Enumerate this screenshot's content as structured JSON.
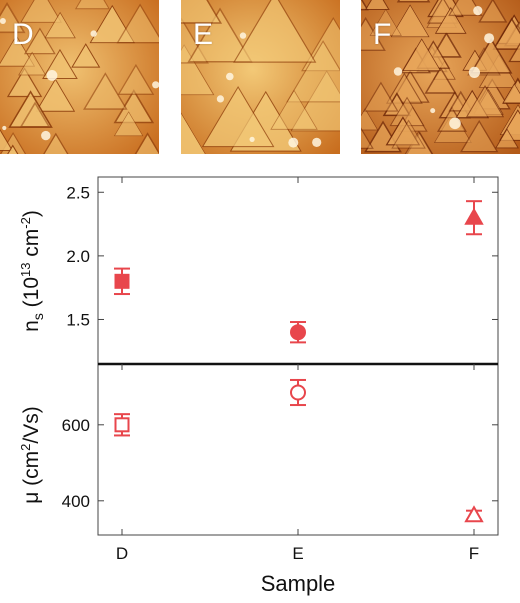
{
  "panels": [
    {
      "label": "D",
      "base": "#c76a1c",
      "light": "#f0c171",
      "dark": "#8a3a0a",
      "triangles": 24
    },
    {
      "label": "E",
      "base": "#c86e1f",
      "light": "#f3c977",
      "dark": "#8e3e0c",
      "triangles": 12
    },
    {
      "label": "F",
      "base": "#b35a18",
      "light": "#e8a65a",
      "dark": "#6b2406",
      "triangles": 55
    }
  ],
  "chart_data": [
    {
      "type": "scatter",
      "categories": [
        "D",
        "E",
        "F"
      ],
      "ylabel": "n_s (10^13 cm^-2)",
      "ylabel_parts": {
        "main": "n",
        "sub": "s",
        "open": " (10",
        "sup1": "13",
        "mid": " cm",
        "sup2": "-2",
        "close": ")"
      },
      "yticks": [
        "1.5",
        "2.0",
        "2.5"
      ],
      "ylim": [
        1.15,
        2.62
      ],
      "color": "#e8464c",
      "points": [
        {
          "x": "D",
          "y": 1.8,
          "err": 0.1,
          "marker": "square-filled"
        },
        {
          "x": "E",
          "y": 1.4,
          "err": 0.08,
          "marker": "circle-filled"
        },
        {
          "x": "F",
          "y": 2.3,
          "err": 0.13,
          "marker": "triangle-filled"
        }
      ]
    },
    {
      "type": "scatter",
      "categories": [
        "D",
        "E",
        "F"
      ],
      "ylabel": "μ (cm²/Vs)",
      "ylabel_parts": {
        "main": "μ (cm",
        "sup": "2",
        "rest": "/Vs)"
      },
      "yticks": [
        "400",
        "600"
      ],
      "ylim": [
        310,
        760
      ],
      "color": "#e8464c",
      "points": [
        {
          "x": "D",
          "y": 600,
          "err": 28,
          "marker": "square-open"
        },
        {
          "x": "E",
          "y": 685,
          "err": 33,
          "marker": "circle-open"
        },
        {
          "x": "F",
          "y": 362,
          "err": 12,
          "marker": "triangle-open"
        }
      ]
    }
  ],
  "xlabel": "Sample",
  "xticks": [
    "D",
    "E",
    "F"
  ]
}
